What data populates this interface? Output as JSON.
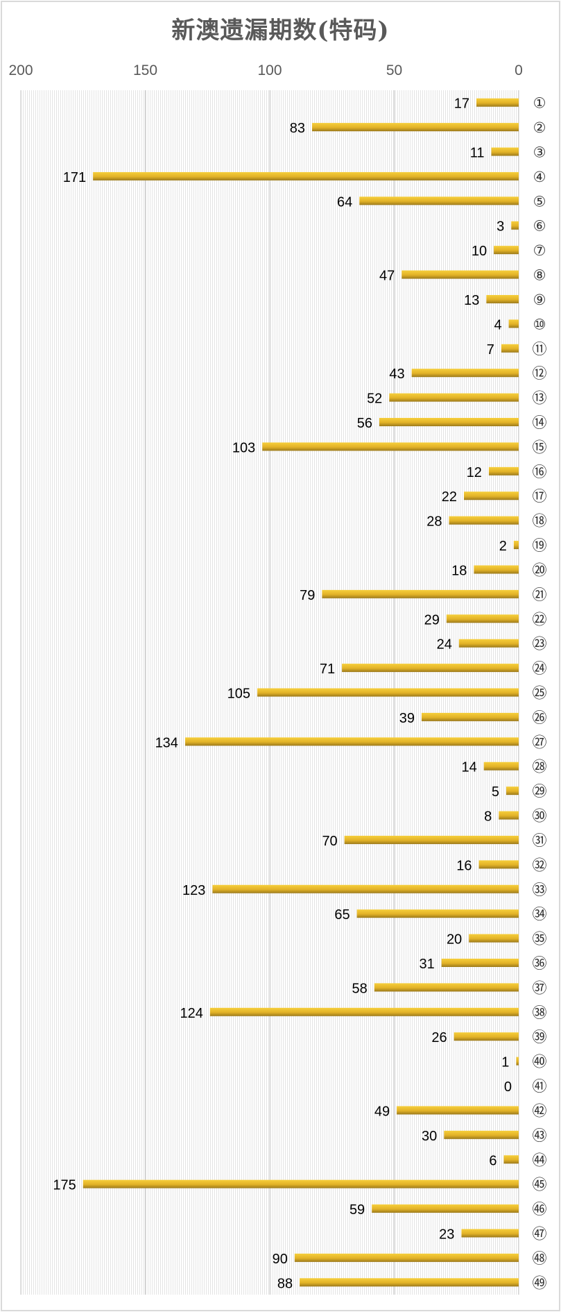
{
  "chart_data": {
    "type": "bar",
    "orientation": "horizontal",
    "x_axis_reversed": true,
    "title": "新澳遗漏期数(特码)",
    "xlim": [
      0,
      200
    ],
    "xticks": [
      200,
      150,
      100,
      50,
      0
    ],
    "x_axis_position": "top",
    "y_axis_position": "right",
    "grid": true,
    "bar_color": "#e8b828",
    "categories": [
      "①",
      "②",
      "③",
      "④",
      "⑤",
      "⑥",
      "⑦",
      "⑧",
      "⑨",
      "⑩",
      "⑪",
      "⑫",
      "⑬",
      "⑭",
      "⑮",
      "⑯",
      "⑰",
      "⑱",
      "⑲",
      "⑳",
      "㉑",
      "㉒",
      "㉓",
      "㉔",
      "㉕",
      "㉖",
      "㉗",
      "㉘",
      "㉙",
      "㉚",
      "㉛",
      "㉜",
      "㉝",
      "㉞",
      "㉟",
      "㊱",
      "㊲",
      "㊳",
      "㊴",
      "㊵",
      "㊶",
      "㊷",
      "㊸",
      "㊹",
      "㊺",
      "㊻",
      "㊼",
      "㊽",
      "㊾"
    ],
    "values": [
      17,
      83,
      11,
      171,
      64,
      3,
      10,
      47,
      13,
      4,
      7,
      43,
      52,
      56,
      103,
      12,
      22,
      28,
      2,
      18,
      79,
      29,
      24,
      71,
      105,
      39,
      134,
      14,
      5,
      8,
      70,
      16,
      123,
      65,
      20,
      31,
      58,
      124,
      26,
      1,
      0,
      49,
      30,
      6,
      175,
      59,
      23,
      90,
      88
    ]
  }
}
